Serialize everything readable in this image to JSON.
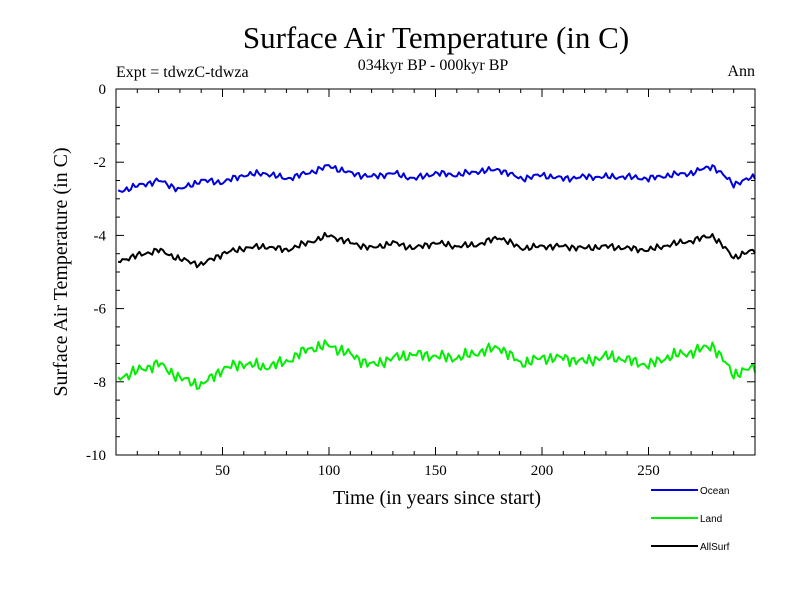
{
  "chart_data": {
    "type": "line",
    "title": "Surface Air Temperature (in C)",
    "subtitle": "034kyr BP - 000kyr BP",
    "experiment_label": "Expt = tdwzC-tdwza",
    "season_label": "Ann",
    "xlabel": "Time (in years since start)",
    "ylabel": "Surface Air Temperature (in C)",
    "xlim": [
      0,
      300
    ],
    "ylim": [
      -10,
      0
    ],
    "x_ticks": [
      {
        "value": 50,
        "label": "50"
      },
      {
        "value": 100,
        "label": "100"
      },
      {
        "value": 150,
        "label": "150"
      },
      {
        "value": 200,
        "label": "200"
      },
      {
        "value": 250,
        "label": "250"
      }
    ],
    "y_ticks": [
      {
        "value": 0,
        "label": "0"
      },
      {
        "value": -2,
        "label": "-2"
      },
      {
        "value": -4,
        "label": "-4"
      },
      {
        "value": -6,
        "label": "-6"
      },
      {
        "value": -8,
        "label": "-8"
      },
      {
        "value": -10,
        "label": "-10"
      }
    ],
    "x": [
      1,
      10,
      20,
      30,
      40,
      50,
      60,
      70,
      80,
      90,
      100,
      110,
      120,
      130,
      140,
      150,
      160,
      170,
      180,
      190,
      200,
      210,
      220,
      230,
      240,
      250,
      260,
      270,
      280,
      290,
      300
    ],
    "series": [
      {
        "name": "Ocean",
        "color": "#0000dd",
        "values": [
          -2.8,
          -2.65,
          -2.5,
          -2.75,
          -2.5,
          -2.55,
          -2.35,
          -2.3,
          -2.45,
          -2.3,
          -2.1,
          -2.3,
          -2.4,
          -2.3,
          -2.45,
          -2.3,
          -2.35,
          -2.25,
          -2.2,
          -2.45,
          -2.35,
          -2.45,
          -2.4,
          -2.4,
          -2.4,
          -2.45,
          -2.35,
          -2.3,
          -2.1,
          -2.6,
          -2.4
        ]
      },
      {
        "name": "Land",
        "color": "#00ee00",
        "values": [
          -7.9,
          -7.7,
          -7.5,
          -7.9,
          -8.1,
          -7.65,
          -7.5,
          -7.6,
          -7.45,
          -7.1,
          -7.0,
          -7.25,
          -7.55,
          -7.35,
          -7.25,
          -7.3,
          -7.35,
          -7.2,
          -7.05,
          -7.5,
          -7.35,
          -7.35,
          -7.45,
          -7.3,
          -7.4,
          -7.55,
          -7.3,
          -7.2,
          -7.0,
          -7.8,
          -7.6
        ]
      },
      {
        "name": "AllSurf",
        "color": "#000000",
        "values": [
          -4.7,
          -4.55,
          -4.4,
          -4.65,
          -4.8,
          -4.5,
          -4.35,
          -4.3,
          -4.4,
          -4.2,
          -4.0,
          -4.2,
          -4.35,
          -4.2,
          -4.35,
          -4.2,
          -4.3,
          -4.25,
          -4.05,
          -4.35,
          -4.3,
          -4.3,
          -4.35,
          -4.3,
          -4.35,
          -4.4,
          -4.25,
          -4.15,
          -4.0,
          -4.6,
          -4.4
        ]
      }
    ],
    "legend": [
      {
        "label": "Ocean",
        "color": "#0000dd"
      },
      {
        "label": "Land",
        "color": "#00ee00"
      },
      {
        "label": "AllSurf",
        "color": "#000000"
      }
    ],
    "legend_position": "bottom-right",
    "grid": false
  }
}
